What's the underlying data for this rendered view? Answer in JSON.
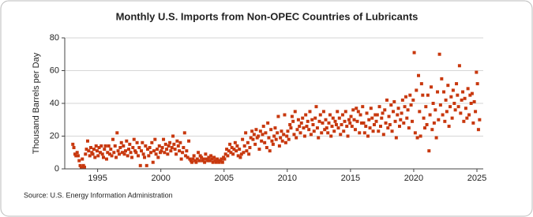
{
  "chart_data": {
    "type": "scatter",
    "title": "Monthly U.S. Imports from Non-OPEC Countries of Lubricants",
    "y_label": "Thousand Barrels per Day",
    "source": "Source: U.S. Energy Information Administration",
    "color": "#c8380e",
    "grid": true,
    "xlim": [
      1992.4,
      2025.5
    ],
    "xticks": [
      1995,
      2000,
      2005,
      2010,
      2015,
      2020,
      2025
    ],
    "ylim": [
      0,
      80
    ],
    "yticks": [
      0,
      20,
      40,
      60,
      80
    ],
    "x": [
      1993.04,
      1993.12,
      1993.21,
      1993.29,
      1993.38,
      1993.46,
      1993.54,
      1993.62,
      1993.71,
      1993.79,
      1993.88,
      1993.96,
      1994.04,
      1994.12,
      1994.21,
      1994.29,
      1994.38,
      1994.46,
      1994.54,
      1994.62,
      1994.71,
      1994.79,
      1994.88,
      1994.96,
      1995.04,
      1995.12,
      1995.21,
      1995.29,
      1995.38,
      1995.46,
      1995.54,
      1995.62,
      1995.71,
      1995.79,
      1995.88,
      1995.96,
      1996.04,
      1996.12,
      1996.21,
      1996.29,
      1996.38,
      1996.46,
      1996.54,
      1996.62,
      1996.71,
      1996.79,
      1996.88,
      1996.96,
      1997.04,
      1997.12,
      1997.21,
      1997.29,
      1997.38,
      1997.46,
      1997.54,
      1997.62,
      1997.71,
      1997.79,
      1997.88,
      1997.96,
      1998.04,
      1998.12,
      1998.21,
      1998.29,
      1998.38,
      1998.46,
      1998.54,
      1998.62,
      1998.71,
      1998.79,
      1998.88,
      1998.96,
      1999.04,
      1999.12,
      1999.21,
      1999.29,
      1999.38,
      1999.46,
      1999.54,
      1999.62,
      1999.71,
      1999.79,
      1999.88,
      1999.96,
      2000.04,
      2000.12,
      2000.21,
      2000.29,
      2000.38,
      2000.46,
      2000.54,
      2000.62,
      2000.71,
      2000.79,
      2000.88,
      2000.96,
      2001.04,
      2001.12,
      2001.21,
      2001.29,
      2001.38,
      2001.46,
      2001.54,
      2001.62,
      2001.71,
      2001.79,
      2001.88,
      2001.96,
      2002.04,
      2002.12,
      2002.21,
      2002.29,
      2002.38,
      2002.46,
      2002.54,
      2002.62,
      2002.71,
      2002.79,
      2002.88,
      2002.96,
      2003.04,
      2003.12,
      2003.21,
      2003.29,
      2003.38,
      2003.46,
      2003.54,
      2003.62,
      2003.71,
      2003.79,
      2003.88,
      2003.96,
      2004.04,
      2004.12,
      2004.21,
      2004.29,
      2004.38,
      2004.46,
      2004.54,
      2004.62,
      2004.71,
      2004.79,
      2004.88,
      2004.96,
      2005.04,
      2005.12,
      2005.21,
      2005.29,
      2005.38,
      2005.46,
      2005.54,
      2005.62,
      2005.71,
      2005.79,
      2005.88,
      2005.96,
      2006.04,
      2006.12,
      2006.21,
      2006.29,
      2006.38,
      2006.46,
      2006.54,
      2006.62,
      2006.71,
      2006.79,
      2006.88,
      2006.96,
      2007.04,
      2007.12,
      2007.21,
      2007.29,
      2007.38,
      2007.46,
      2007.54,
      2007.62,
      2007.71,
      2007.79,
      2007.88,
      2007.96,
      2008.04,
      2008.12,
      2008.21,
      2008.29,
      2008.38,
      2008.46,
      2008.54,
      2008.62,
      2008.71,
      2008.79,
      2008.88,
      2008.96,
      2009.04,
      2009.12,
      2009.21,
      2009.29,
      2009.38,
      2009.46,
      2009.54,
      2009.62,
      2009.71,
      2009.79,
      2009.88,
      2009.96,
      2010.04,
      2010.12,
      2010.21,
      2010.29,
      2010.38,
      2010.46,
      2010.54,
      2010.62,
      2010.71,
      2010.79,
      2010.88,
      2010.96,
      2011.04,
      2011.12,
      2011.21,
      2011.29,
      2011.38,
      2011.46,
      2011.54,
      2011.62,
      2011.71,
      2011.79,
      2011.88,
      2011.96,
      2012.04,
      2012.12,
      2012.21,
      2012.29,
      2012.38,
      2012.46,
      2012.54,
      2012.62,
      2012.71,
      2012.79,
      2012.88,
      2012.96,
      2013.04,
      2013.12,
      2013.21,
      2013.29,
      2013.38,
      2013.46,
      2013.54,
      2013.62,
      2013.71,
      2013.79,
      2013.88,
      2013.96,
      2014.04,
      2014.12,
      2014.21,
      2014.29,
      2014.38,
      2014.46,
      2014.54,
      2014.62,
      2014.71,
      2014.79,
      2014.88,
      2014.96,
      2015.04,
      2015.12,
      2015.21,
      2015.29,
      2015.38,
      2015.46,
      2015.54,
      2015.62,
      2015.71,
      2015.79,
      2015.88,
      2015.96,
      2016.04,
      2016.12,
      2016.21,
      2016.29,
      2016.38,
      2016.46,
      2016.54,
      2016.62,
      2016.71,
      2016.79,
      2016.88,
      2016.96,
      2017.04,
      2017.12,
      2017.21,
      2017.29,
      2017.38,
      2017.46,
      2017.54,
      2017.62,
      2017.71,
      2017.79,
      2017.88,
      2017.96,
      2018.04,
      2018.12,
      2018.21,
      2018.29,
      2018.38,
      2018.46,
      2018.54,
      2018.62,
      2018.71,
      2018.79,
      2018.88,
      2018.96,
      2019.04,
      2019.12,
      2019.21,
      2019.29,
      2019.38,
      2019.46,
      2019.54,
      2019.62,
      2019.71,
      2019.79,
      2019.88,
      2019.96,
      2020.04,
      2020.12,
      2020.21,
      2020.29,
      2020.38,
      2020.46,
      2020.54,
      2020.62,
      2020.71,
      2020.79,
      2020.88,
      2020.96,
      2021.04,
      2021.12,
      2021.21,
      2021.29,
      2021.38,
      2021.46,
      2021.54,
      2021.62,
      2021.71,
      2021.79,
      2021.88,
      2021.96,
      2022.04,
      2022.12,
      2022.21,
      2022.29,
      2022.38,
      2022.46,
      2022.54,
      2022.62,
      2022.71,
      2022.79,
      2022.88,
      2022.96,
      2023.04,
      2023.12,
      2023.21,
      2023.29,
      2023.38,
      2023.46,
      2023.54,
      2023.62,
      2023.71,
      2023.79,
      2023.88,
      2023.96,
      2024.04,
      2024.12,
      2024.21,
      2024.29,
      2024.38,
      2024.46,
      2024.54,
      2024.62,
      2024.71,
      2024.79,
      2024.88,
      2024.96,
      2025.04,
      2025.12,
      2025.21
    ],
    "values": [
      15,
      13,
      9,
      8,
      10,
      8,
      5,
      2,
      1,
      6,
      2,
      1,
      9,
      12,
      17,
      11,
      8,
      13,
      10,
      9,
      12,
      7,
      14,
      11,
      8,
      13,
      10,
      14,
      9,
      7,
      12,
      14,
      6,
      10,
      14,
      9,
      12,
      8,
      18,
      10,
      14,
      7,
      22,
      11,
      9,
      13,
      16,
      10,
      14,
      9,
      11,
      17,
      8,
      12,
      15,
      10,
      7,
      13,
      18,
      11,
      10,
      16,
      8,
      13,
      2,
      11,
      16,
      9,
      7,
      14,
      2,
      12,
      8,
      13,
      10,
      16,
      4,
      11,
      18,
      9,
      12,
      7,
      14,
      10,
      11,
      13,
      18,
      10,
      15,
      12,
      9,
      14,
      16,
      11,
      13,
      20,
      15,
      12,
      9,
      17,
      14,
      11,
      16,
      6,
      10,
      13,
      22,
      8,
      11,
      7,
      17,
      6,
      5,
      4,
      6,
      8,
      5,
      4,
      6,
      10,
      5,
      8,
      7,
      5,
      6,
      4,
      9,
      6,
      5,
      7,
      5,
      8,
      6,
      4,
      7,
      5,
      4,
      6,
      5,
      4,
      5,
      6,
      4,
      7,
      6,
      9,
      12,
      8,
      11,
      15,
      10,
      13,
      9,
      12,
      16,
      11,
      14,
      8,
      12,
      7,
      9,
      18,
      10,
      14,
      22,
      11,
      16,
      9,
      13,
      19,
      23,
      18,
      21,
      15,
      24,
      19,
      20,
      12,
      23,
      17,
      21,
      26,
      16,
      22,
      13,
      28,
      19,
      11,
      24,
      17,
      15,
      20,
      25,
      18,
      22,
      32,
      14,
      19,
      23,
      17,
      21,
      33,
      16,
      20,
      23,
      18,
      27,
      25,
      32,
      29,
      21,
      35,
      19,
      24,
      30,
      26,
      22,
      28,
      31,
      25,
      20,
      33,
      26,
      29,
      24,
      35,
      21,
      30,
      27,
      23,
      31,
      38,
      25,
      19,
      29,
      33,
      22,
      28,
      35,
      24,
      30,
      25,
      22,
      28,
      33,
      20,
      26,
      31,
      23,
      29,
      27,
      35,
      25,
      31,
      21,
      27,
      33,
      23,
      29,
      35,
      26,
      20,
      30,
      28,
      32,
      26,
      36,
      30,
      24,
      37,
      29,
      35,
      22,
      33,
      28,
      38,
      28,
      22,
      26,
      34,
      20,
      30,
      25,
      37,
      31,
      23,
      27,
      33,
      29,
      33,
      23,
      38,
      26,
      31,
      34,
      21,
      36,
      28,
      42,
      25,
      32,
      27,
      39,
      23,
      35,
      41,
      29,
      19,
      33,
      37,
      26,
      30,
      34,
      42,
      28,
      38,
      44,
      31,
      36,
      25,
      45,
      39,
      29,
      42,
      71,
      22,
      48,
      19,
      57,
      35,
      20,
      52,
      45,
      31,
      25,
      38,
      27,
      45,
      11,
      33,
      50,
      24,
      40,
      28,
      36,
      19,
      47,
      30,
      70,
      39,
      55,
      33,
      47,
      29,
      42,
      35,
      51,
      26,
      38,
      44,
      31,
      48,
      40,
      36,
      52,
      45,
      38,
      63,
      34,
      42,
      47,
      29,
      43,
      37,
      31,
      49,
      33,
      45,
      40,
      46,
      28,
      41,
      35,
      59,
      52,
      24,
      30
    ]
  }
}
